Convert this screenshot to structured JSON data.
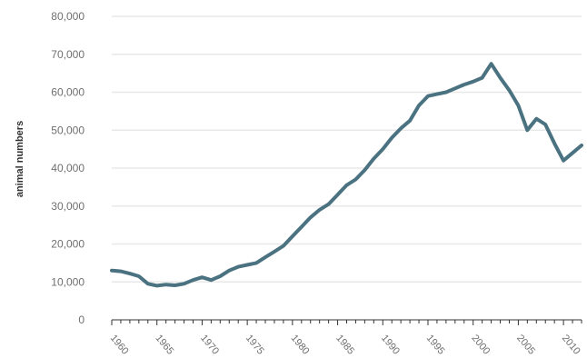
{
  "chart_data": {
    "type": "line",
    "title": "",
    "xlabel": "",
    "ylabel": "animal numbers",
    "xlim": [
      1960,
      2012
    ],
    "ylim": [
      0,
      80000
    ],
    "grid": "horizontal",
    "line_color": "#4a7280",
    "grid_color": "#e8e8e8",
    "y_ticks": [
      {
        "value": 0,
        "label": "0"
      },
      {
        "value": 10000,
        "label": "10,000"
      },
      {
        "value": 20000,
        "label": "20,000"
      },
      {
        "value": 30000,
        "label": "30,000"
      },
      {
        "value": 40000,
        "label": "40,000"
      },
      {
        "value": 50000,
        "label": "50,000"
      },
      {
        "value": 60000,
        "label": "60,000"
      },
      {
        "value": 70000,
        "label": "70,000"
      },
      {
        "value": 80000,
        "label": "80,000"
      }
    ],
    "x_ticks": [
      {
        "value": 1960,
        "label": "1960"
      },
      {
        "value": 1965,
        "label": "1965"
      },
      {
        "value": 1970,
        "label": "1970"
      },
      {
        "value": 1975,
        "label": "1975"
      },
      {
        "value": 1980,
        "label": "1980"
      },
      {
        "value": 1985,
        "label": "1985"
      },
      {
        "value": 1990,
        "label": "1990"
      },
      {
        "value": 1995,
        "label": "1995"
      },
      {
        "value": 2000,
        "label": "2000"
      },
      {
        "value": 2005,
        "label": "2005"
      },
      {
        "value": 2010,
        "label": "2010"
      }
    ],
    "series": [
      {
        "x": [
          1960,
          1961,
          1962,
          1963,
          1964,
          1965,
          1966,
          1967,
          1968,
          1969,
          1970,
          1971,
          1972,
          1973,
          1974,
          1975,
          1976,
          1977,
          1978,
          1979,
          1980,
          1981,
          1982,
          1983,
          1984,
          1985,
          1986,
          1987,
          1988,
          1989,
          1990,
          1991,
          1992,
          1993,
          1994,
          1995,
          1996,
          1997,
          1998,
          1999,
          2000,
          2001,
          2002,
          2003,
          2004,
          2005,
          2006,
          2007,
          2008,
          2009,
          2010,
          2011,
          2012
        ],
        "y": [
          13000,
          12800,
          12200,
          11500,
          9500,
          9000,
          9300,
          9100,
          9500,
          10500,
          11200,
          10500,
          11500,
          13000,
          14000,
          14500,
          15000,
          16500,
          18000,
          19500,
          22000,
          24500,
          27000,
          29000,
          30500,
          33000,
          35500,
          37000,
          39500,
          42500,
          45000,
          48000,
          50500,
          52500,
          56500,
          59000,
          59500,
          60000,
          61000,
          62000,
          62800,
          63800,
          67500,
          63800,
          60500,
          56500,
          50000,
          53000,
          51500,
          46500,
          42000,
          44000,
          46000
        ]
      }
    ]
  }
}
